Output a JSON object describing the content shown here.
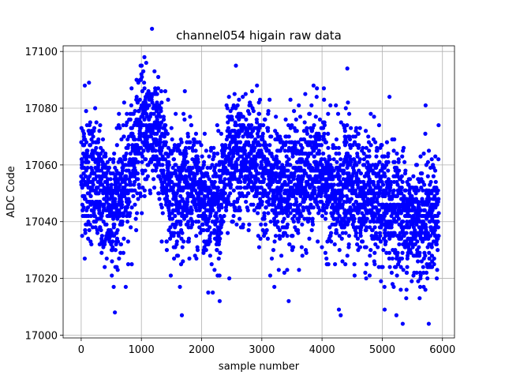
{
  "chart_data": {
    "type": "scatter",
    "title": "channel054 higain raw data",
    "xlabel": "sample number",
    "ylabel": "ADC Code",
    "xlim": [
      -300,
      6200
    ],
    "ylim": [
      16999,
      17102
    ],
    "xticks": [
      0,
      1000,
      2000,
      3000,
      4000,
      5000,
      6000
    ],
    "yticks": [
      17000,
      17020,
      17040,
      17060,
      17080,
      17100
    ],
    "grid": true,
    "marker_color": "#0000ff",
    "series": [
      {
        "name": "",
        "sample_every": 30,
        "points": [
          [
            0,
            17056
          ],
          [
            30,
            17072
          ],
          [
            60,
            17048
          ],
          [
            90,
            17064
          ],
          [
            120,
            17040
          ],
          [
            150,
            17075
          ],
          [
            180,
            17052
          ],
          [
            210,
            17044
          ],
          [
            240,
            17068
          ],
          [
            270,
            17036
          ],
          [
            300,
            17058
          ],
          [
            330,
            17046
          ],
          [
            360,
            17060
          ],
          [
            390,
            17032
          ],
          [
            420,
            17050
          ],
          [
            450,
            17042
          ],
          [
            480,
            17062
          ],
          [
            510,
            17036
          ],
          [
            540,
            17048
          ],
          [
            570,
            17030
          ],
          [
            600,
            17054
          ],
          [
            630,
            17044
          ],
          [
            660,
            17040
          ],
          [
            690,
            17058
          ],
          [
            720,
            17050
          ],
          [
            750,
            17066
          ],
          [
            780,
            17046
          ],
          [
            810,
            17062
          ],
          [
            840,
            17056
          ],
          [
            870,
            17070
          ],
          [
            900,
            17058
          ],
          [
            930,
            17074
          ],
          [
            960,
            17064
          ],
          [
            990,
            17080
          ],
          [
            1020,
            17068
          ],
          [
            1050,
            17076
          ],
          [
            1080,
            17070
          ],
          [
            1110,
            17084
          ],
          [
            1140,
            17066
          ],
          [
            1170,
            17078
          ],
          [
            1200,
            17062
          ],
          [
            1230,
            17074
          ],
          [
            1260,
            17068
          ],
          [
            1290,
            17080
          ],
          [
            1320,
            17064
          ],
          [
            1350,
            17060
          ],
          [
            1380,
            17056
          ],
          [
            1410,
            17050
          ],
          [
            1440,
            17058
          ],
          [
            1470,
            17046
          ],
          [
            1500,
            17054
          ],
          [
            1530,
            17044
          ],
          [
            1560,
            17060
          ],
          [
            1590,
            17050
          ],
          [
            1620,
            17040
          ],
          [
            1650,
            17056
          ],
          [
            1680,
            17048
          ],
          [
            1710,
            17062
          ],
          [
            1740,
            17046
          ],
          [
            1770,
            17052
          ],
          [
            1800,
            17058
          ],
          [
            1830,
            17044
          ],
          [
            1860,
            17054
          ],
          [
            1890,
            17048
          ],
          [
            1920,
            17060
          ],
          [
            1950,
            17042
          ],
          [
            1980,
            17050
          ],
          [
            2010,
            17046
          ],
          [
            2040,
            17056
          ],
          [
            2070,
            17040
          ],
          [
            2100,
            17052
          ],
          [
            2130,
            17038
          ],
          [
            2160,
            17048
          ],
          [
            2190,
            17044
          ],
          [
            2220,
            17054
          ],
          [
            2250,
            17036
          ],
          [
            2280,
            17046
          ],
          [
            2310,
            17042
          ],
          [
            2340,
            17058
          ],
          [
            2370,
            17050
          ],
          [
            2400,
            17062
          ],
          [
            2430,
            17048
          ],
          [
            2460,
            17066
          ],
          [
            2490,
            17056
          ],
          [
            2520,
            17070
          ],
          [
            2550,
            17060
          ],
          [
            2580,
            17074
          ],
          [
            2610,
            17054
          ],
          [
            2640,
            17068
          ],
          [
            2670,
            17050
          ],
          [
            2700,
            17062
          ],
          [
            2730,
            17056
          ],
          [
            2760,
            17072
          ],
          [
            2790,
            17058
          ],
          [
            2820,
            17064
          ],
          [
            2850,
            17052
          ],
          [
            2880,
            17068
          ],
          [
            2910,
            17060
          ],
          [
            2940,
            17070
          ],
          [
            2970,
            17054
          ],
          [
            3000,
            17064
          ],
          [
            3030,
            17058
          ],
          [
            3060,
            17050
          ],
          [
            3090,
            17062
          ],
          [
            3120,
            17046
          ],
          [
            3150,
            17056
          ],
          [
            3180,
            17048
          ],
          [
            3210,
            17060
          ],
          [
            3240,
            17042
          ],
          [
            3270,
            17054
          ],
          [
            3300,
            17050
          ],
          [
            3330,
            17058
          ],
          [
            3360,
            17044
          ],
          [
            3390,
            17056
          ],
          [
            3420,
            17048
          ],
          [
            3450,
            17062
          ],
          [
            3480,
            17052
          ],
          [
            3510,
            17066
          ],
          [
            3540,
            17046
          ],
          [
            3570,
            17058
          ],
          [
            3600,
            17050
          ],
          [
            3630,
            17062
          ],
          [
            3660,
            17054
          ],
          [
            3690,
            17044
          ],
          [
            3720,
            17060
          ],
          [
            3750,
            17050
          ],
          [
            3780,
            17064
          ],
          [
            3810,
            17048
          ],
          [
            3840,
            17058
          ],
          [
            3870,
            17052
          ],
          [
            3900,
            17066
          ],
          [
            3930,
            17056
          ],
          [
            3960,
            17070
          ],
          [
            3990,
            17058
          ],
          [
            4020,
            17064
          ],
          [
            4050,
            17052
          ],
          [
            4080,
            17060
          ],
          [
            4110,
            17048
          ],
          [
            4140,
            17056
          ],
          [
            4170,
            17042
          ],
          [
            4200,
            17050
          ],
          [
            4230,
            17036
          ],
          [
            4260,
            17044
          ],
          [
            4290,
            17030
          ],
          [
            4320,
            17040
          ],
          [
            4350,
            17060
          ],
          [
            4380,
            17070
          ],
          [
            4410,
            17064
          ],
          [
            4440,
            17056
          ],
          [
            4470,
            17062
          ],
          [
            4500,
            17050
          ],
          [
            4530,
            17058
          ],
          [
            4560,
            17044
          ],
          [
            4590,
            17054
          ],
          [
            4620,
            17040
          ],
          [
            4650,
            17052
          ],
          [
            4680,
            17046
          ],
          [
            4710,
            17056
          ],
          [
            4740,
            17038
          ],
          [
            4770,
            17050
          ],
          [
            4800,
            17044
          ],
          [
            4830,
            17058
          ],
          [
            4860,
            17040
          ],
          [
            4890,
            17052
          ],
          [
            4920,
            17034
          ],
          [
            4950,
            17046
          ],
          [
            4980,
            17038
          ],
          [
            5010,
            17050
          ],
          [
            5040,
            17042
          ],
          [
            5070,
            17054
          ],
          [
            5100,
            17036
          ],
          [
            5130,
            17048
          ],
          [
            5160,
            17044
          ],
          [
            5190,
            17056
          ],
          [
            5220,
            17040
          ],
          [
            5250,
            17046
          ],
          [
            5280,
            17034
          ],
          [
            5310,
            17050
          ],
          [
            5340,
            17038
          ],
          [
            5370,
            17044
          ],
          [
            5400,
            17032
          ],
          [
            5430,
            17046
          ],
          [
            5460,
            17040
          ],
          [
            5490,
            17052
          ],
          [
            5520,
            17036
          ],
          [
            5550,
            17044
          ],
          [
            5580,
            17030
          ],
          [
            5610,
            17042
          ],
          [
            5640,
            17034
          ],
          [
            5670,
            17046
          ],
          [
            5700,
            17038
          ],
          [
            5730,
            17050
          ],
          [
            5760,
            17036
          ],
          [
            5790,
            17044
          ],
          [
            5820,
            17032
          ],
          [
            5850,
            17048
          ],
          [
            5880,
            17040
          ],
          [
            5910,
            17046
          ]
        ],
        "outliers": [
          [
            1050,
            17098
          ],
          [
            1080,
            17096
          ],
          [
            2570,
            17095
          ],
          [
            4420,
            17094
          ],
          [
            2300,
            17012
          ],
          [
            4310,
            17007
          ],
          [
            4280,
            17009
          ],
          [
            5040,
            17009
          ],
          [
            5340,
            17004
          ],
          [
            5120,
            17084
          ],
          [
            5720,
            17081
          ],
          [
            540,
            17017
          ],
          [
            740,
            17017
          ],
          [
            1640,
            17017
          ],
          [
            2460,
            17020
          ],
          [
            130,
            17089
          ],
          [
            60,
            17088
          ],
          [
            980,
            17090
          ],
          [
            1280,
            17091
          ],
          [
            2920,
            17088
          ]
        ]
      }
    ]
  }
}
